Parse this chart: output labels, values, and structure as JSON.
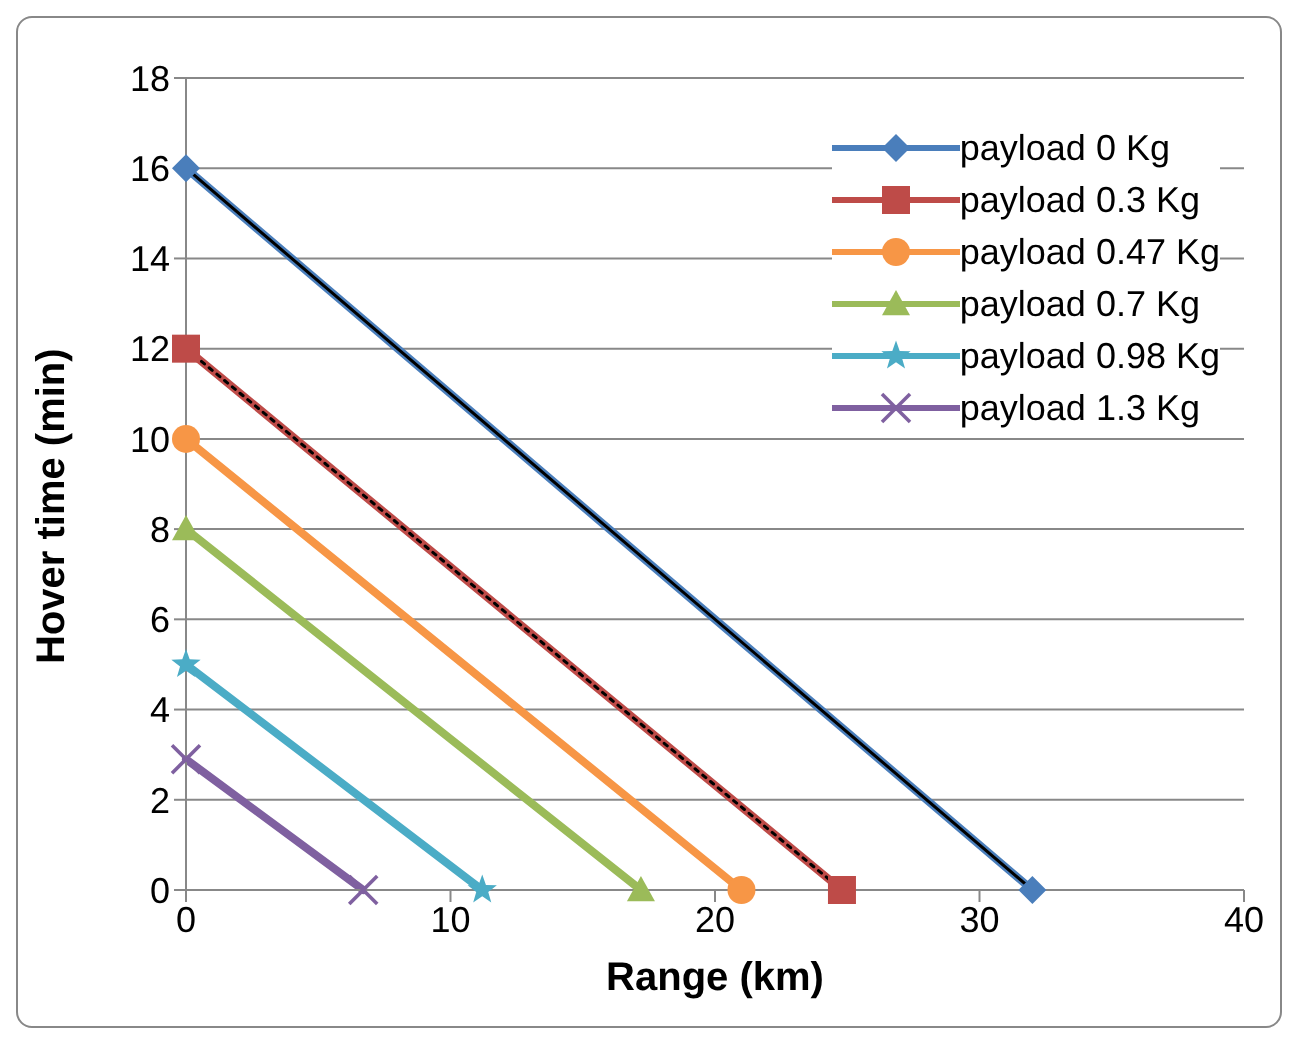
{
  "chart_data": {
    "type": "line",
    "xlabel": "Range (km)",
    "ylabel": "Hover  time (min)",
    "xlim": [
      0,
      40
    ],
    "xticks": [
      0,
      10,
      20,
      30,
      40
    ],
    "ylim": [
      0,
      18
    ],
    "yticks": [
      0,
      2,
      4,
      6,
      8,
      10,
      12,
      14,
      16,
      18
    ],
    "grid": "y",
    "legend": "top right",
    "line_style": "solid",
    "series": [
      {
        "name": "payload 0 Kg",
        "color": "#4a7ebb",
        "marker": "diamond",
        "x": [
          0,
          32
        ],
        "values": [
          16,
          0
        ]
      },
      {
        "name": "payload 0.3 Kg",
        "color": "#be4b48",
        "marker": "square",
        "x": [
          0,
          24.8
        ],
        "values": [
          12,
          0
        ]
      },
      {
        "name": "payload 0.47 Kg",
        "color": "#f79646",
        "marker": "circle",
        "x": [
          0,
          21
        ],
        "values": [
          10,
          0
        ]
      },
      {
        "name": "payload 0.7 Kg",
        "color": "#9bbb59",
        "marker": "triangle",
        "x": [
          0,
          17.2
        ],
        "values": [
          8,
          0
        ]
      },
      {
        "name": "payload 0.98 Kg",
        "color": "#4bacc6",
        "marker": "star",
        "x": [
          0,
          11.2
        ],
        "values": [
          5,
          0
        ]
      },
      {
        "name": "payload 1.3  Kg",
        "color": "#7f60a0",
        "marker": "cross",
        "x": [
          0,
          6.7
        ],
        "values": [
          2.9,
          0
        ]
      },
      {
        "type": "line",
        "color": "#000000",
        "marker": "none",
        "line_style": "solid",
        "x": [
          0,
          32
        ],
        "values": [
          16,
          0
        ]
      },
      {
        "type": "line",
        "color": "#000000",
        "marker": "none",
        "line_style": "dotted",
        "x": [
          0,
          24.8
        ],
        "values": [
          12,
          0
        ]
      }
    ]
  }
}
